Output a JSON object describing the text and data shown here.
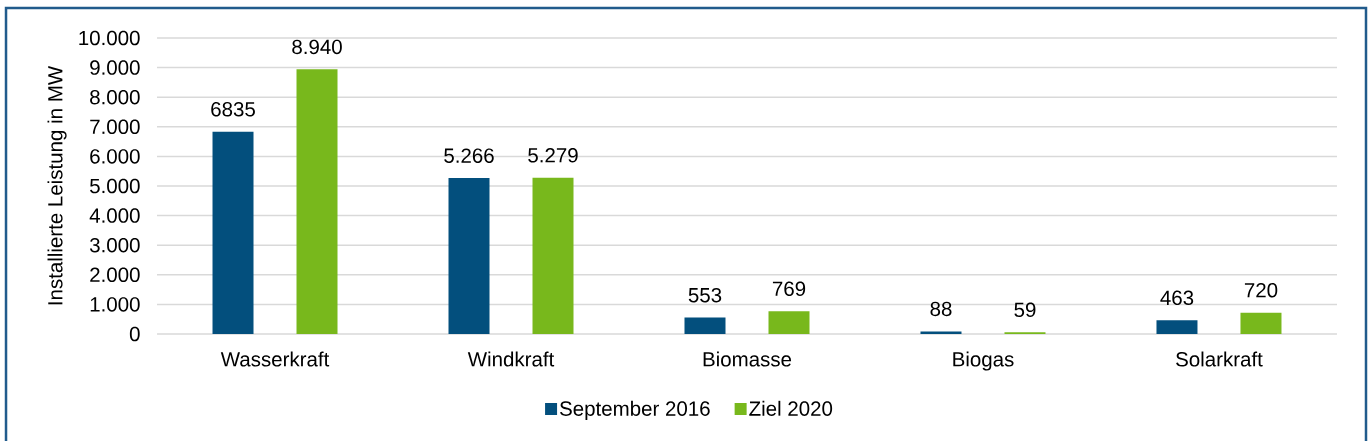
{
  "chart_data": {
    "type": "bar",
    "ylabel": "Installierte Leistung in MW",
    "categories": [
      "Wasserkraft",
      "Windkraft",
      "Biomasse",
      "Biogas",
      "Solarkraft"
    ],
    "series": [
      {
        "name": "September 2016",
        "color": "#034f7d",
        "values": [
          6835,
          5266,
          553,
          88,
          463
        ],
        "value_labels": [
          "6835",
          "5.266",
          "553",
          "88",
          "463"
        ]
      },
      {
        "name": "Ziel 2020",
        "color": "#78b81c",
        "values": [
          8940,
          5279,
          769,
          59,
          720
        ],
        "value_labels": [
          "8.940",
          "5.279",
          "769",
          "59",
          "720"
        ]
      }
    ],
    "ylim": [
      0,
      10000
    ],
    "yticks": [
      0,
      {
        "value": 1000,
        "label": "1.000"
      },
      {
        "value": 2000,
        "label": "2.000"
      },
      {
        "value": 3000,
        "label": "3.000"
      },
      {
        "value": 4000,
        "label": "4.000"
      },
      {
        "value": 5000,
        "label": "5.000"
      },
      {
        "value": 6000,
        "label": "6.000"
      },
      {
        "value": 7000,
        "label": "7.000"
      },
      {
        "value": 8000,
        "label": "8.000"
      },
      {
        "value": 9000,
        "label": "9.000"
      },
      {
        "value": 10000,
        "label": "10.000"
      }
    ],
    "grid": "y",
    "legend": "bottom"
  }
}
